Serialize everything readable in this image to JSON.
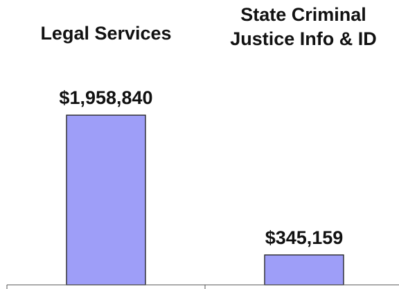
{
  "chart_data": {
    "type": "bar",
    "categories": [
      [
        "Legal Services"
      ],
      [
        "State Criminal",
        "Justice Info & ID"
      ]
    ],
    "values": [
      1958840,
      345159
    ],
    "value_labels": [
      "$1,958,840",
      "$345,159"
    ],
    "title": "",
    "xlabel": "",
    "ylabel": "",
    "ylim": [
      0,
      2000000
    ],
    "grid": false,
    "legend": "none",
    "bar_color": "#9e9ef8",
    "bar_stroke": "#1a1a1a",
    "text_color": "#111111"
  }
}
